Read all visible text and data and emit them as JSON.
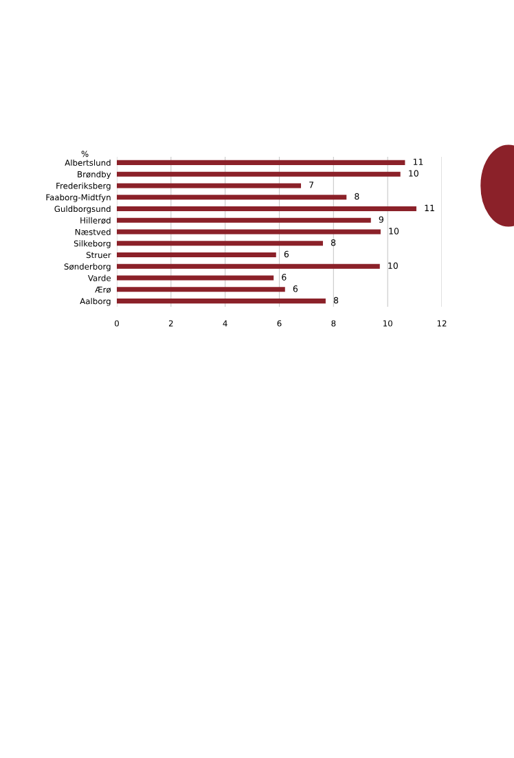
{
  "chart_data": {
    "type": "bar",
    "orientation": "horizontal",
    "xlabel": "%",
    "categories": [
      "Albertslund",
      "Brøndby",
      "Frederiksberg",
      "Faaborg-Midtfyn",
      "Guldborgsund",
      "Hillerød",
      "Næstved",
      "Silkeborg",
      "Struer",
      "Sønderborg",
      "Varde",
      "Ærø",
      "Aalborg"
    ],
    "values": [
      10.64,
      10.47,
      6.8,
      8.48,
      11.06,
      9.38,
      9.74,
      7.61,
      5.88,
      9.71,
      5.79,
      6.21,
      7.71
    ],
    "value_labels": [
      "11",
      "10",
      "7",
      "8",
      "11",
      "9",
      "10",
      "8",
      "6",
      "10",
      "6",
      "6",
      "8"
    ],
    "color": "#8b2129",
    "xlim": [
      0,
      12
    ],
    "xticks": [
      0,
      2,
      4,
      6,
      8,
      10,
      12
    ],
    "grid": "x"
  }
}
